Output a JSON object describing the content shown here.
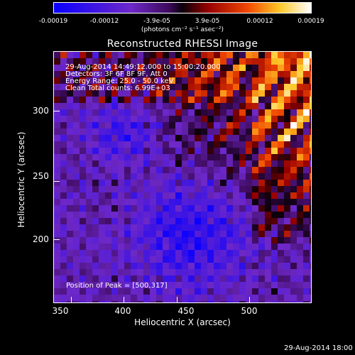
{
  "colorbar": {
    "tick_labels": [
      "-0.00019",
      "-0.00012",
      "-3.9e-05",
      "3.9e-05",
      "0.00012",
      "0.00019"
    ],
    "unit_label": "(photons cm⁻² s⁻¹ asec⁻²)",
    "range": [
      -0.00019,
      0.00019
    ]
  },
  "title": "Reconstructed RHESSI Image",
  "info": {
    "time": "29-Aug-2014 14:49:12.000 to 15:00:20.000",
    "detectors": "Detectors: 3F 6F 8F 9F, Att 0",
    "energy": "Energy Range: 25.0 - 50.0 keV",
    "clean": "Clean     Total counts: 6.99E+03",
    "peak": "Position of Peak = [500,317]"
  },
  "axes": {
    "xlabel": "Heliocentric X (arcsec)",
    "ylabel": "Heliocentric Y (arcsec)",
    "xlim": [
      345,
      540
    ],
    "ylim": [
      152,
      330
    ],
    "xticks": [
      "350",
      "400",
      "450",
      "500"
    ],
    "yticks": [
      "200",
      "250",
      "300"
    ]
  },
  "footer": {
    "timestamp": "29-Aug-2014 18:00"
  }
}
